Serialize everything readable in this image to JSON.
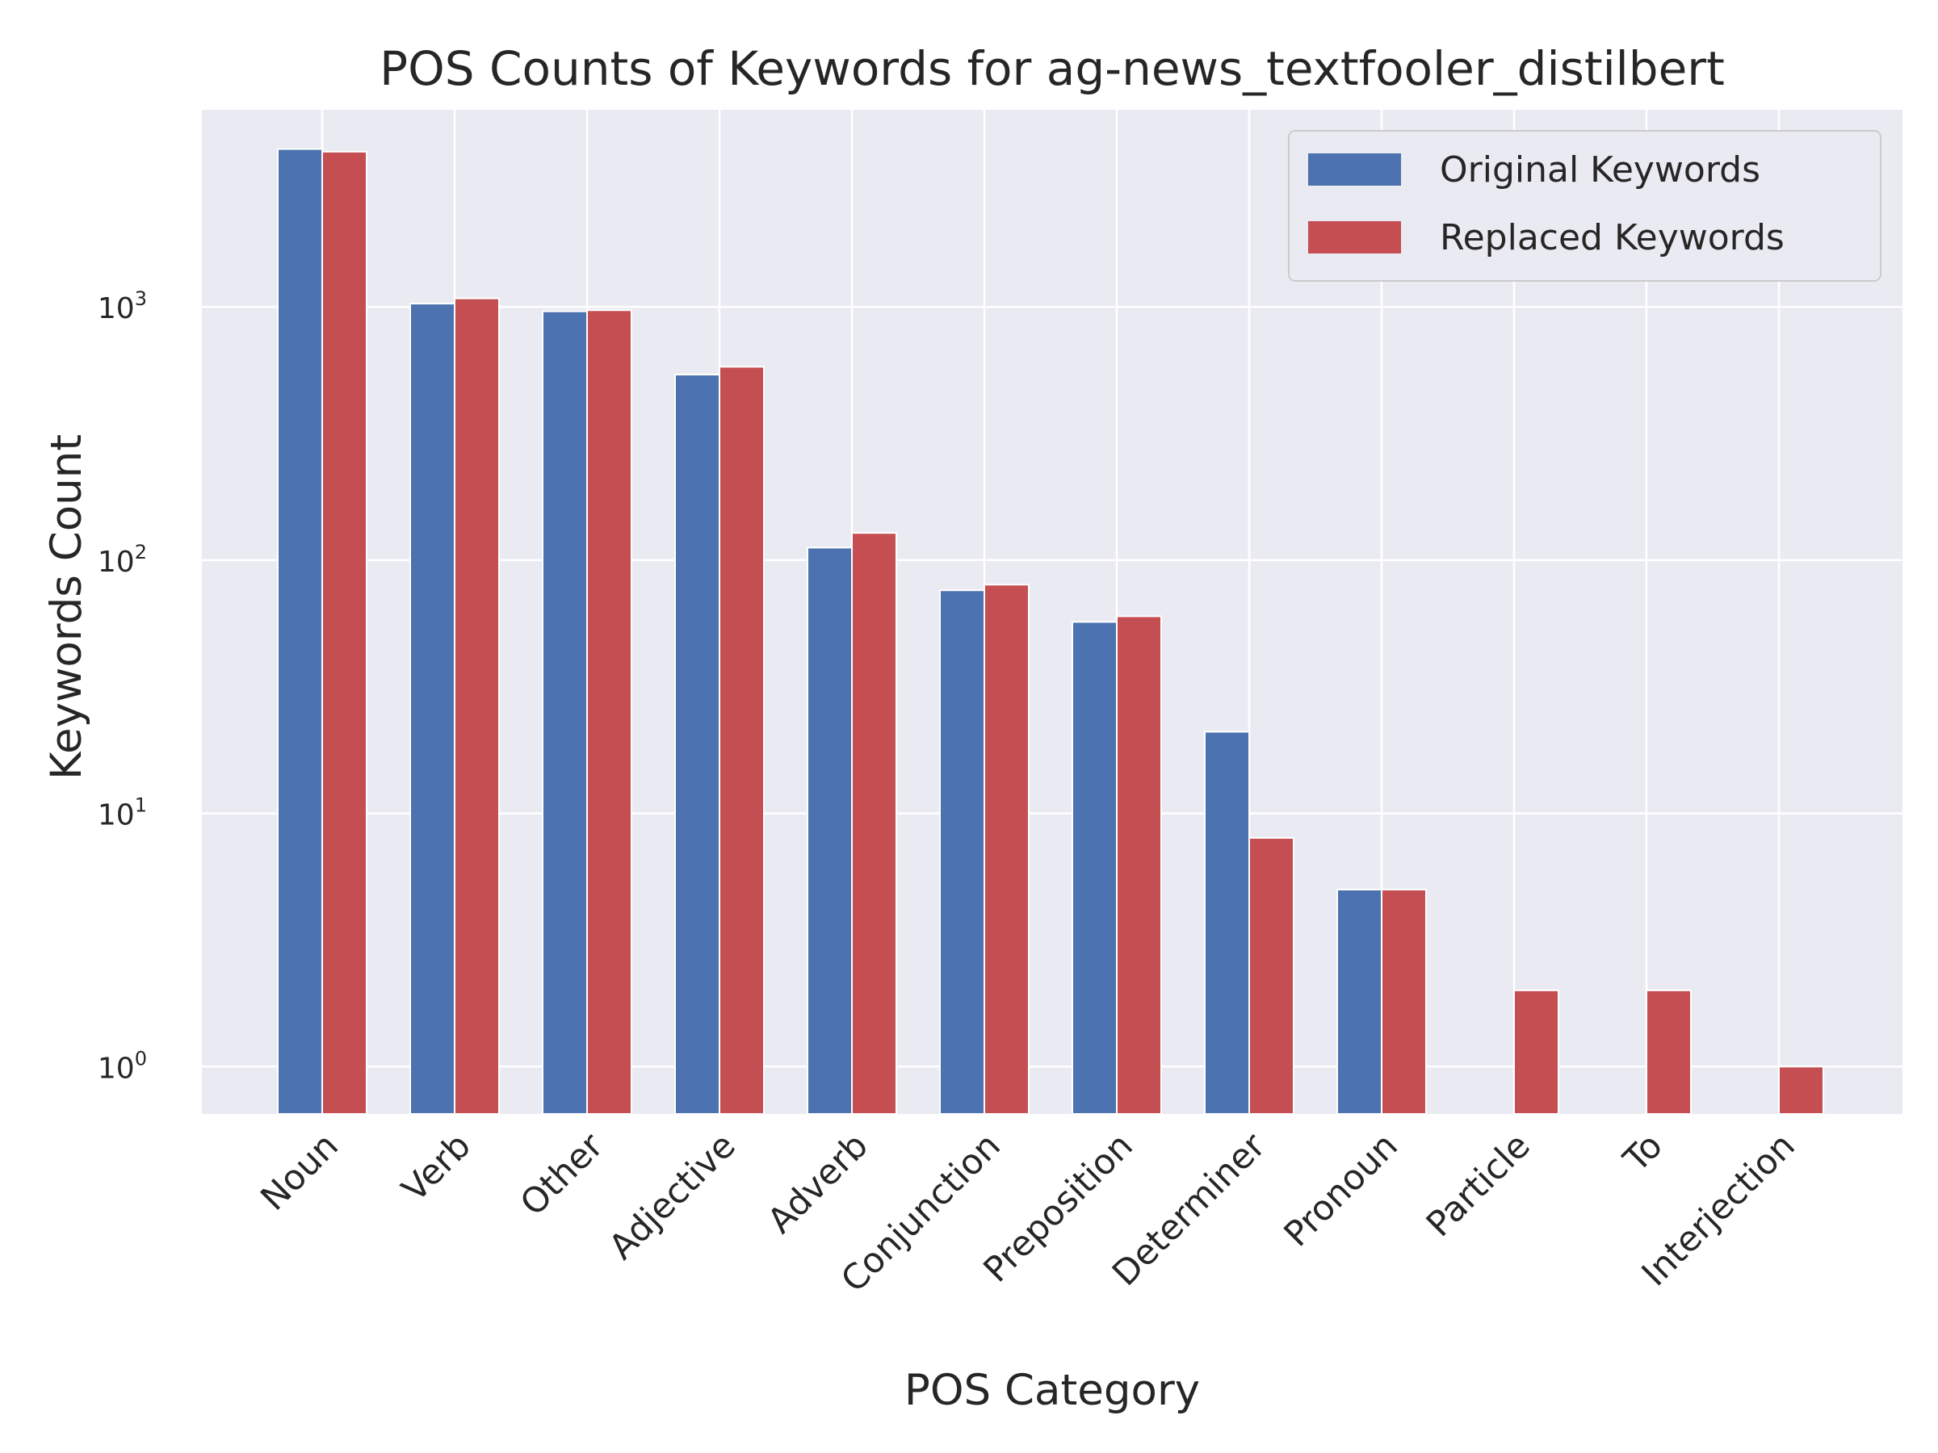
{
  "chart_data": {
    "type": "bar",
    "title": "POS Counts of Keywords for ag-news_textfooler_distilbert",
    "xlabel": "POS Category",
    "ylabel": "Keywords Count",
    "y_scale": "log",
    "ylim": [
      0.65,
      6000
    ],
    "y_ticks": [
      {
        "value": 1,
        "base": "10",
        "exp": "0"
      },
      {
        "value": 10,
        "base": "10",
        "exp": "1"
      },
      {
        "value": 100,
        "base": "10",
        "exp": "2"
      },
      {
        "value": 1000,
        "base": "10",
        "exp": "3"
      }
    ],
    "grid": true,
    "legend_position": "top-right",
    "categories": [
      "Noun",
      "Verb",
      "Other",
      "Adjective",
      "Adverb",
      "Conjunction",
      "Preposition",
      "Determiner",
      "Pronoun",
      "Particle",
      "To",
      "Interjection"
    ],
    "series": [
      {
        "name": "Original Keywords",
        "color": "#4c72b0",
        "values": [
          4200,
          1030,
          960,
          540,
          112,
          76,
          57,
          21,
          5,
          null,
          null,
          null
        ]
      },
      {
        "name": "Replaced Keywords",
        "color": "#c44e52",
        "values": [
          4100,
          1080,
          970,
          580,
          128,
          80,
          60,
          8,
          5,
          2,
          2,
          1
        ]
      }
    ]
  },
  "colors": {
    "plot_background": "#eaeaf2",
    "grid": "#ffffff",
    "legend_border": "#cccccc"
  }
}
